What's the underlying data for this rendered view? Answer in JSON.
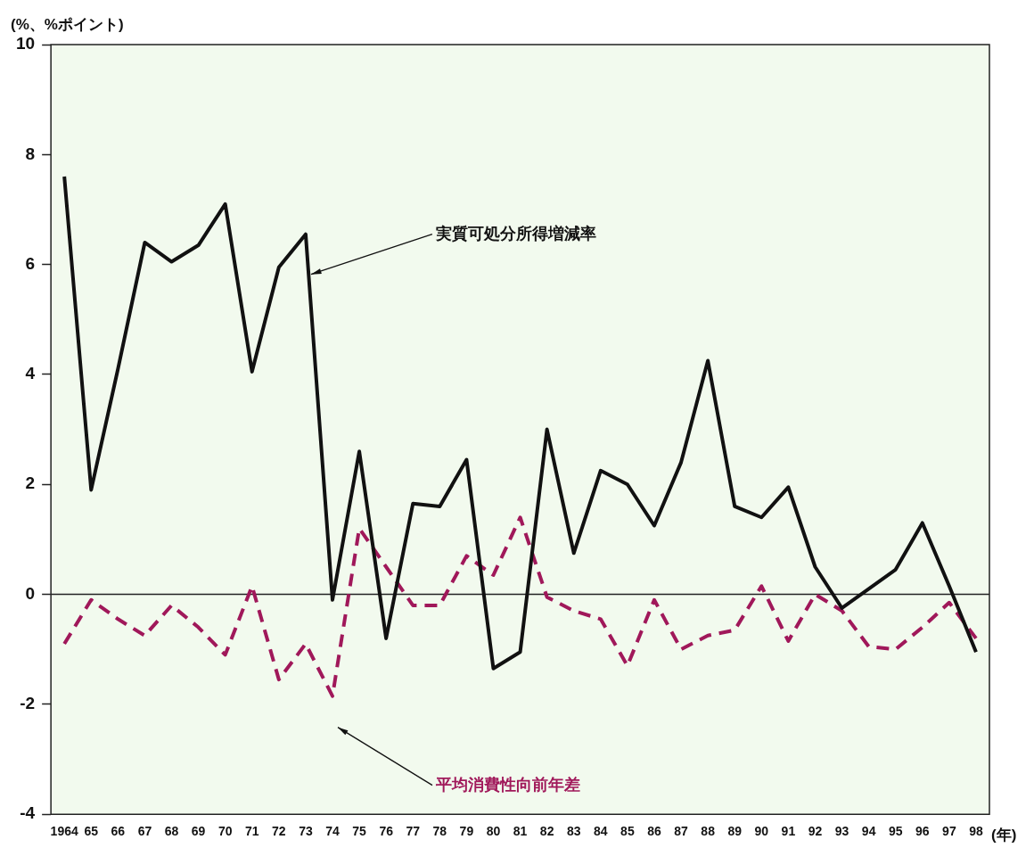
{
  "chart_data": {
    "type": "line",
    "ylabel": "(%、%ポイント)",
    "xlabel": "(年)",
    "categories": [
      "1964",
      "65",
      "66",
      "67",
      "68",
      "69",
      "70",
      "71",
      "72",
      "73",
      "74",
      "75",
      "76",
      "77",
      "78",
      "79",
      "80",
      "81",
      "82",
      "83",
      "84",
      "85",
      "86",
      "87",
      "88",
      "89",
      "90",
      "91",
      "92",
      "93",
      "94",
      "95",
      "96",
      "97",
      "98"
    ],
    "series": [
      {
        "name": "実質可処分所得増減率",
        "color": "#111111",
        "line_style": "solid",
        "values": [
          7.6,
          1.9,
          4.1,
          6.4,
          6.05,
          6.35,
          7.1,
          4.05,
          5.95,
          6.55,
          -0.1,
          2.6,
          -0.8,
          1.65,
          1.6,
          2.45,
          -1.35,
          -1.05,
          3.0,
          0.75,
          2.25,
          2.0,
          1.25,
          2.4,
          4.25,
          1.6,
          1.4,
          1.95,
          0.5,
          -0.25,
          0.1,
          0.45,
          1.3,
          0.15,
          -1.05
        ]
      },
      {
        "name": "平均消費性向前年差",
        "color": "#a0185a",
        "line_style": "dashed",
        "values": [
          -0.9,
          -0.1,
          -0.45,
          -0.75,
          -0.2,
          -0.6,
          -1.1,
          0.15,
          -1.55,
          -0.9,
          -1.85,
          1.2,
          0.5,
          -0.2,
          -0.2,
          0.7,
          0.35,
          1.4,
          -0.05,
          -0.3,
          -0.45,
          -1.3,
          -0.1,
          -1.0,
          -0.75,
          -0.65,
          0.15,
          -0.85,
          0.0,
          -0.3,
          -0.95,
          -1.0,
          -0.6,
          -0.15,
          -0.8
        ]
      }
    ],
    "ylim": [
      -4,
      10
    ],
    "yticks": [
      -4,
      -2,
      0,
      2,
      4,
      6,
      8,
      10
    ],
    "grid": false,
    "legend": false,
    "marker": "none",
    "ref_lines": [
      {
        "axis": "y",
        "value": 0,
        "color": "#222222"
      }
    ]
  }
}
